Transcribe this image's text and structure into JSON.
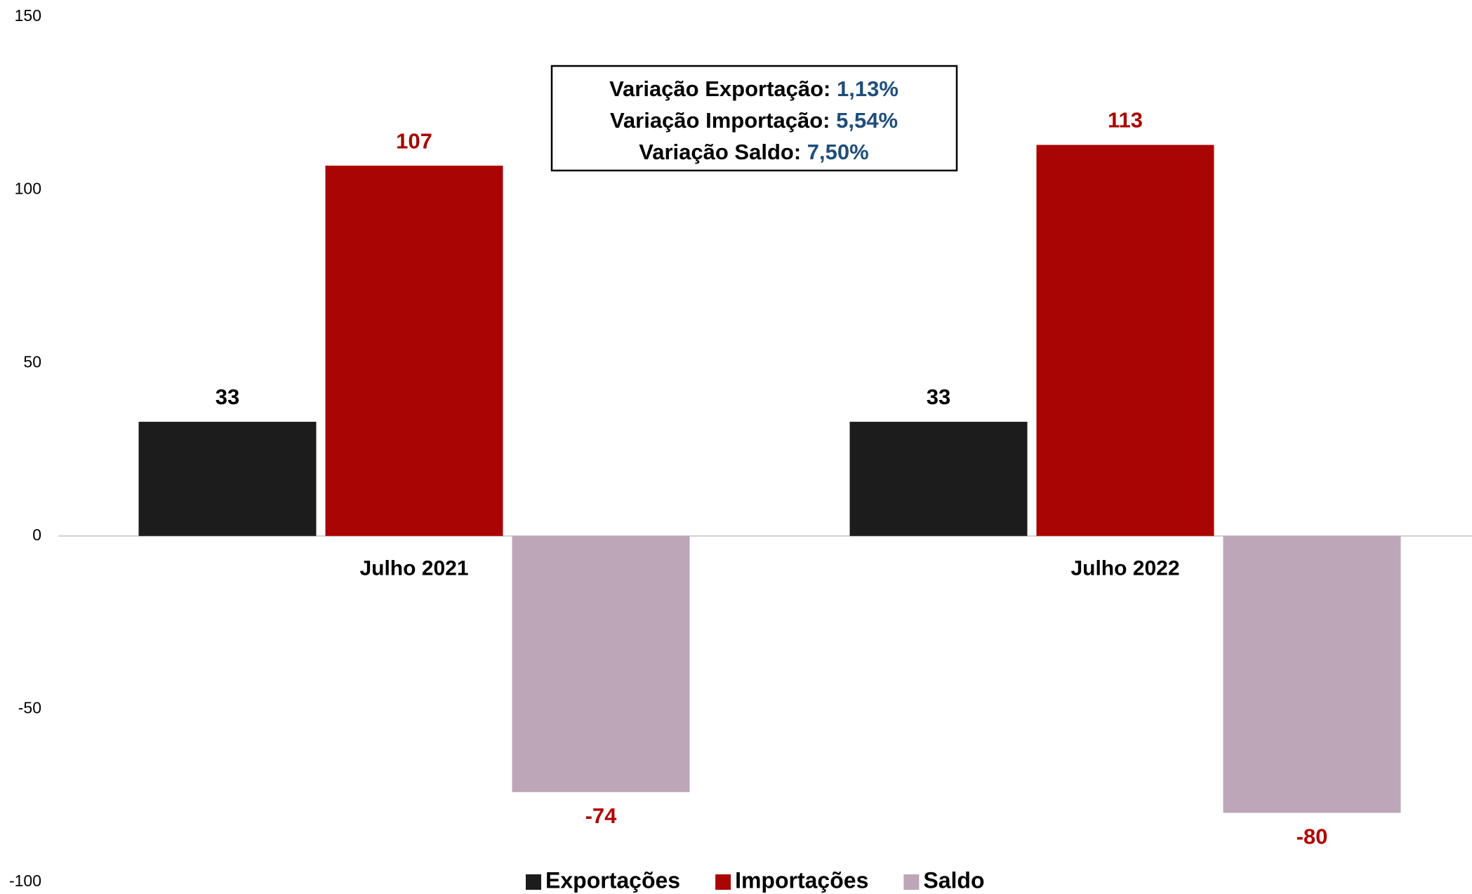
{
  "chart_data": {
    "type": "bar",
    "categories": [
      "Julho 2021",
      "Julho 2022"
    ],
    "series": [
      {
        "name": "Exportações",
        "color": "#1c1c1c",
        "label_color": "#000000",
        "values": [
          33,
          33
        ]
      },
      {
        "name": "Importações",
        "color": "#aa0505",
        "label_color": "#a80000",
        "values": [
          107,
          113
        ]
      },
      {
        "name": "Saldo",
        "color": "#bda6b8",
        "label_color": "#b00000",
        "values": [
          -74,
          -80
        ]
      }
    ],
    "ylim": [
      -100,
      150
    ],
    "yticks": [
      -100,
      -50,
      0,
      50,
      100,
      150
    ],
    "grid": false,
    "legend": "bottom",
    "annotations": [
      {
        "label": "Variação Exportação:",
        "value": "1,13%"
      },
      {
        "label": "Variação Importação:",
        "value": "5,54%"
      },
      {
        "label": "Variação Saldo:",
        "value": "7,50%"
      }
    ]
  }
}
